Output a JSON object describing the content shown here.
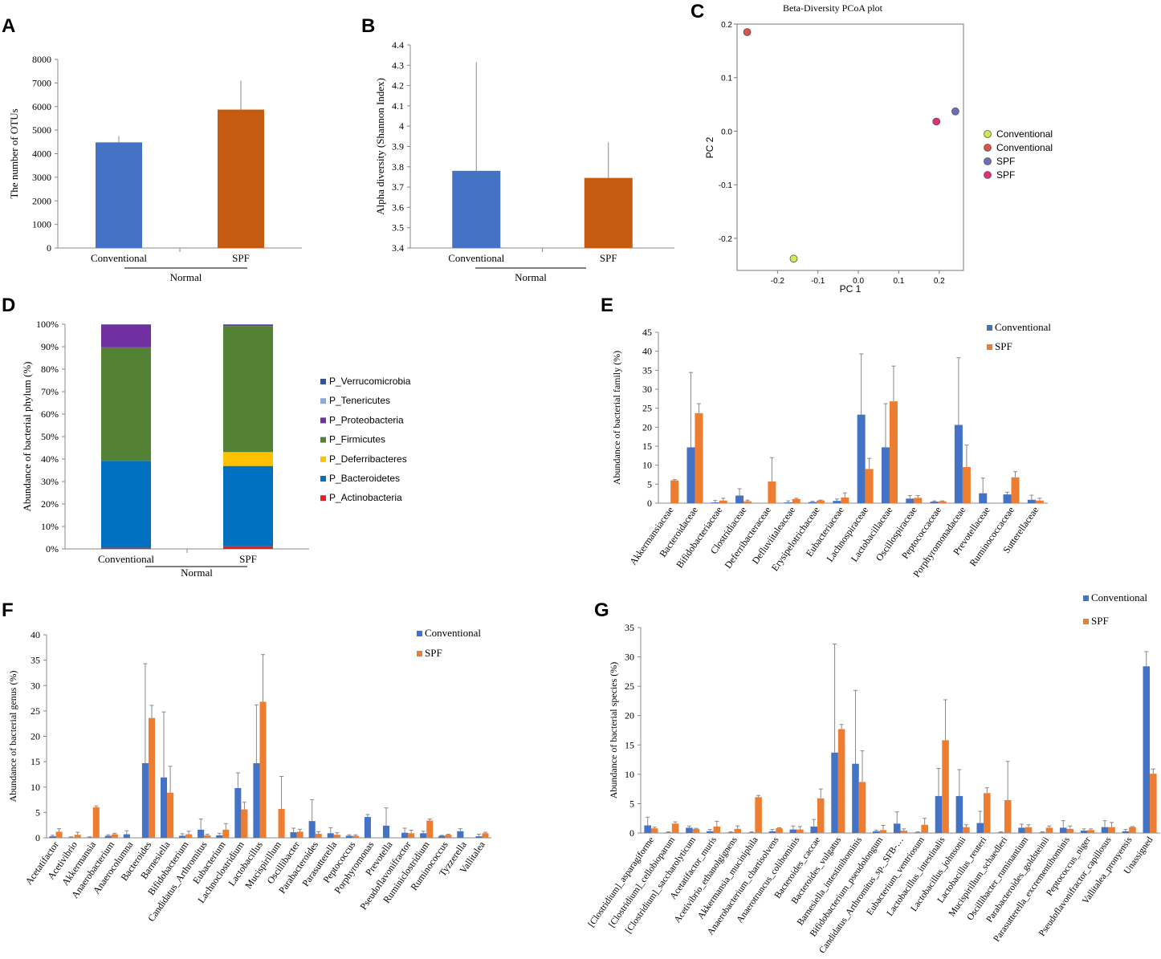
{
  "panels": {
    "A": {
      "label": "A",
      "chart_data": {
        "type": "bar",
        "categories": [
          "Conventional",
          "SPF"
        ],
        "values": [
          4480,
          5870
        ],
        "errors": [
          270,
          1230
        ],
        "colors": [
          "#4472c4",
          "#c55a11"
        ],
        "ylabel": "The number of OTUs",
        "ylim": [
          0,
          8000
        ],
        "yticks": [
          "0",
          "1000",
          "2000",
          "3000",
          "4000",
          "5000",
          "6000",
          "7000",
          "8000"
        ],
        "group_label": "Normal"
      }
    },
    "B": {
      "label": "B",
      "chart_data": {
        "type": "bar",
        "categories": [
          "Conventional",
          "SPF"
        ],
        "values": [
          3.78,
          3.745
        ],
        "errors": [
          0.535,
          0.175
        ],
        "colors": [
          "#4472c4",
          "#c55a11"
        ],
        "ylabel": "Alpha diversity (Shannon Index)",
        "ylim": [
          3.4,
          4.4
        ],
        "yticks": [
          "3.4",
          "3.5",
          "3.6",
          "3.7",
          "3.8",
          "3.9",
          "4",
          "4.1",
          "4.2",
          "4.3",
          "4.4"
        ],
        "group_label": "Normal"
      }
    },
    "C": {
      "label": "C",
      "chart_data": {
        "type": "scatter",
        "title": "Beta-Diversity  PCoA plot",
        "xlabel": "PC 1",
        "ylabel": "PC 2",
        "xlim": [
          -0.3,
          0.26
        ],
        "ylim": [
          -0.26,
          0.2
        ],
        "xticks": [
          "-0.2",
          "-0.1",
          "0.0",
          "0.1",
          "0.2"
        ],
        "yticks": [
          "-0.2",
          "-0.1",
          "0.0",
          "0.1",
          "0.2"
        ],
        "points": [
          {
            "name": "Conventional",
            "x": -0.16,
            "y": -0.238,
            "color": "#d6e84a"
          },
          {
            "name": "Conventional",
            "x": -0.275,
            "y": 0.185,
            "color": "#d9534a"
          },
          {
            "name": "SPF",
            "x": 0.24,
            "y": 0.037,
            "color": "#6a6fb8"
          },
          {
            "name": "SPF",
            "x": 0.193,
            "y": 0.018,
            "color": "#e0307a"
          }
        ]
      }
    },
    "D": {
      "label": "D",
      "chart_data": {
        "type": "bar",
        "stacked": true,
        "categories": [
          "Conventional",
          "SPF"
        ],
        "ylabel": "Abundance of bacterial phylum (%)",
        "yticks": [
          "0%",
          "10%",
          "20%",
          "30%",
          "40%",
          "50%",
          "60%",
          "70%",
          "80%",
          "90%",
          "100%"
        ],
        "group_label": "Normal",
        "series": [
          {
            "name": "P_Actinobacteria",
            "color": "#e8201c",
            "values": [
              0.5,
              1.2
            ]
          },
          {
            "name": "P_Bacteroidetes",
            "color": "#0070c0",
            "values": [
              38.7,
              35.7
            ]
          },
          {
            "name": "P_Deferribacteres",
            "color": "#ffc000",
            "values": [
              0,
              6.2
            ]
          },
          {
            "name": "P_Firmicutes",
            "color": "#548235",
            "values": [
              50.5,
              56.1
            ]
          },
          {
            "name": "P_Proteobacteria",
            "color": "#7030a0",
            "values": [
              10.1,
              0.6
            ]
          },
          {
            "name": "P_Tenericutes",
            "color": "#8ea9db",
            "values": [
              0.1,
              0.1
            ]
          },
          {
            "name": "P_Verrucomicrobia",
            "color": "#2f5597",
            "values": [
              0.1,
              0.1
            ]
          }
        ]
      }
    },
    "E": {
      "label": "E",
      "chart_data": {
        "type": "bar",
        "ylabel": "Abundance of bacterial family (%)",
        "ylim": [
          0,
          45
        ],
        "yticks": [
          "0",
          "5",
          "10",
          "15",
          "20",
          "25",
          "30",
          "35",
          "40",
          "45"
        ],
        "categories": [
          "Akkermansiaceae",
          "Bacteroidaceae",
          "Bifidobacteriaceae",
          "Clostridiaceae",
          "Deferribacteraceae",
          "Defluviitaleaceae",
          "Erysipelotrichaceae",
          "Eubacteriaceae",
          "Lachnospiraceae",
          "Lactobacillaceae",
          "Oscillospiraceae",
          "Peptococcaceae",
          "Porphyromonadaceae",
          "Prevotellaceae",
          "Ruminococcaceae",
          "Sutterellaceae"
        ],
        "series": [
          {
            "name": "Conventional",
            "color": "#4472c4",
            "values": [
              0,
              14.7,
              0.2,
              2.0,
              0,
              0.2,
              0.3,
              0.6,
              23.3,
              14.7,
              1.2,
              0.4,
              20.6,
              2.6,
              2.3,
              0.9
            ],
            "errors": [
              0,
              19.7,
              0.5,
              1.8,
              0,
              0.4,
              0.2,
              0.5,
              16.0,
              11.5,
              0.8,
              0.2,
              17.7,
              4.0,
              0.6,
              1.2
            ]
          },
          {
            "name": "SPF",
            "color": "#ed7d31",
            "values": [
              6.0,
              23.7,
              0.7,
              0.5,
              5.7,
              1.1,
              0.7,
              1.5,
              9.0,
              26.8,
              1.4,
              0.5,
              9.5,
              0,
              6.8,
              0.7
            ],
            "errors": [
              0.2,
              2.5,
              0.6,
              0.3,
              6.3,
              0.2,
              0.1,
              1.2,
              2.8,
              9.3,
              0.6,
              0.1,
              5.8,
              0,
              1.5,
              0.6
            ]
          }
        ]
      }
    },
    "F": {
      "label": "F",
      "chart_data": {
        "type": "bar",
        "ylabel": "Abundance of bacterial genus (%)",
        "ylim": [
          0,
          40
        ],
        "yticks": [
          "0",
          "5",
          "10",
          "15",
          "20",
          "25",
          "30",
          "35",
          "40"
        ],
        "categories": [
          "Acetatifactor",
          "Acetivibrio",
          "Akkermansia",
          "Anaerobacterium",
          "Anaerocolumna",
          "Bacteroides",
          "Barnesiella",
          "Bifidobacterium",
          "Candidatus_Arthromitus",
          "Eubacterium",
          "Lachnoclostridium",
          "Lactobacillus",
          "Mucispirillum",
          "Oscillibacter",
          "Parabacteroides",
          "Parasutterella",
          "Peptococcus",
          "Porphyromonas",
          "Prevotella",
          "Pseudoflavonifractor",
          "Ruminiclostridium",
          "Ruminococcus",
          "Tyzzerella",
          "Vallitalea"
        ],
        "series": [
          {
            "name": "Conventional",
            "color": "#4472c4",
            "values": [
              0.3,
              0.1,
              0.1,
              0.4,
              0.7,
              14.7,
              11.9,
              0.4,
              1.6,
              0.5,
              9.8,
              14.7,
              0,
              1.1,
              3.3,
              0.9,
              0.4,
              4.1,
              2.4,
              1.0,
              0.9,
              0.4,
              1.3,
              0.3
            ],
            "errors": [
              0.2,
              0.1,
              0.1,
              0.2,
              0.7,
              19.6,
              12.9,
              0.4,
              2.1,
              0.4,
              3.0,
              11.5,
              0,
              0.8,
              4.2,
              1.1,
              0.2,
              0.5,
              3.5,
              0.9,
              0.4,
              0.1,
              0.5,
              0.4
            ],
            "labeled": true
          },
          {
            "name": "SPF",
            "color": "#ed7d31",
            "values": [
              1.2,
              0.6,
              6.0,
              0.7,
              0,
              23.6,
              8.9,
              0.7,
              0.5,
              1.6,
              5.6,
              26.8,
              5.7,
              1.2,
              0.8,
              0.6,
              0.4,
              0,
              0,
              0.9,
              3.4,
              0.6,
              0,
              0.9
            ],
            "errors": [
              0.6,
              0.5,
              0.3,
              0.2,
              0,
              2.5,
              5.2,
              0.6,
              0.2,
              1.2,
              1.4,
              9.3,
              6.4,
              0.5,
              0.4,
              0.4,
              0.2,
              0,
              0,
              0.6,
              0.3,
              0.1,
              0,
              0.2
            ]
          }
        ]
      }
    },
    "G": {
      "label": "G",
      "chart_data": {
        "type": "bar",
        "ylabel": "Abundance of bacterial species (%)",
        "ylim": [
          0,
          35
        ],
        "yticks": [
          "0",
          "5",
          "10",
          "15",
          "20",
          "25",
          "30",
          "35"
        ],
        "categories": [
          "[Clostridium]_asparagiforme",
          "[Clostridium]_cellobioparum",
          "[Clostridium]_saccharolyticum",
          "Acetatifactor_muris",
          "Acetivibrio_ethanolgignens",
          "Akkermansia_muciniphila",
          "Anaerobacterium_chartisolvens",
          "Anaerotruncus_colihominis",
          "Bacteroides_caccae",
          "Bacteroides_vulgatus",
          "Barnesiella_intestinihominis",
          "Bifidobacterium_pseudolongum",
          "Candidatus_Arthromitus_sp._SFB-…",
          "Eubacterium_ventriosum",
          "Lactobacillus_intestinalis",
          "Lactobacillus_johnsonii",
          "Lactobacillus_reuteri",
          "Mucispirillum_schaedleri",
          "Oscillibacter_ruminantium",
          "Parabacteroides_goldsteinii",
          "Parasutterella_excrementihominis",
          "Peptococcus_niger",
          "Pseudoflavonifractor_capillosus",
          "Vallitalea_pronyensis",
          "Unassigned"
        ],
        "series": [
          {
            "name": "Conventional",
            "color": "#4472c4",
            "values": [
              1.3,
              0.1,
              0.9,
              0.3,
              0.1,
              0.1,
              0.3,
              0.6,
              1.1,
              13.7,
              11.8,
              0.3,
              1.6,
              0.1,
              6.3,
              6.3,
              1.7,
              0.1,
              0.9,
              0.1,
              0.9,
              0.4,
              1.0,
              0.3,
              28.4
            ],
            "errors": [
              1.4,
              0.1,
              0.3,
              0.3,
              0.1,
              0.1,
              0.3,
              0.6,
              1.2,
              18.5,
              12.5,
              0.2,
              2.0,
              0.1,
              4.7,
              4.5,
              2.0,
              0.1,
              0.6,
              0.1,
              1.2,
              0.3,
              1.1,
              0.3,
              2.5
            ]
          },
          {
            "name": "SPF",
            "color": "#ed7d31",
            "values": [
              0.8,
              1.6,
              0.7,
              1.1,
              0.7,
              6.1,
              0.8,
              0.6,
              5.9,
              17.7,
              8.7,
              0.5,
              0.4,
              1.4,
              15.8,
              1.0,
              6.8,
              5.6,
              1.0,
              0.9,
              0.7,
              0.5,
              1.0,
              1.0,
              10.1
            ],
            "errors": [
              0.2,
              0.3,
              0.1,
              0.9,
              0.5,
              0.3,
              0.1,
              0.5,
              1.6,
              0.8,
              5.3,
              0.8,
              0.3,
              1.1,
              6.9,
              0.4,
              0.9,
              6.6,
              0.4,
              0.3,
              0.5,
              0.2,
              0.8,
              0.1,
              0.8
            ]
          }
        ]
      }
    }
  }
}
